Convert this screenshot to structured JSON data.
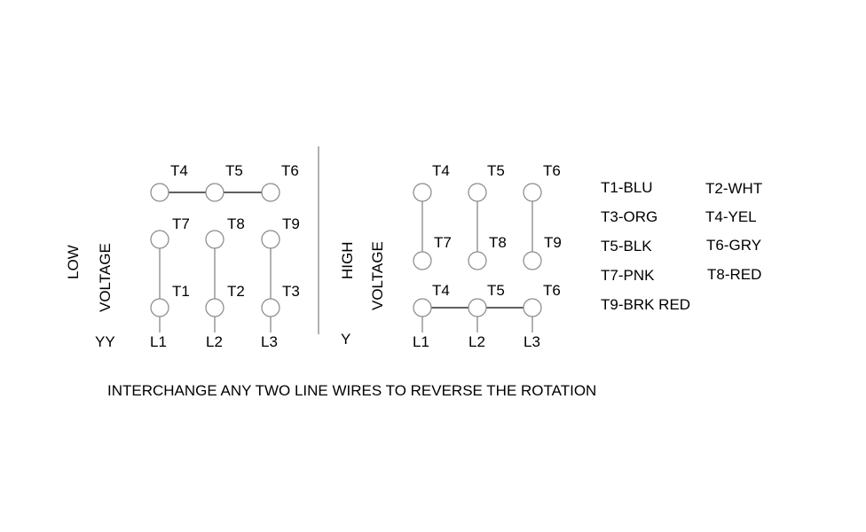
{
  "low": {
    "title1": "LOW",
    "title2": "VOLTAGE",
    "config": "YY",
    "top": [
      "T4",
      "T5",
      "T6"
    ],
    "mid": [
      "T7",
      "T8",
      "T9"
    ],
    "bot": [
      "T1",
      "T2",
      "T3"
    ],
    "lines": [
      "L1",
      "L2",
      "L3"
    ]
  },
  "high": {
    "title1": "HIGH",
    "title2": "VOLTAGE",
    "config": "Y",
    "top": [
      "T4",
      "T5",
      "T6"
    ],
    "mid": [
      "T7",
      "T8",
      "T9"
    ],
    "bot": [
      "T4",
      "T5",
      "T6"
    ],
    "lines": [
      "L1",
      "L2",
      "L3"
    ]
  },
  "legend": [
    "T1-BLU",
    "T2-WHT",
    "T3-ORG",
    "T4-YEL",
    "T5-BLK",
    "T6-GRY",
    "T7-PNK",
    "T8-RED",
    "T9-BRK RED"
  ],
  "note": "INTERCHANGE ANY TWO LINE WIRES TO REVERSE THE ROTATION"
}
